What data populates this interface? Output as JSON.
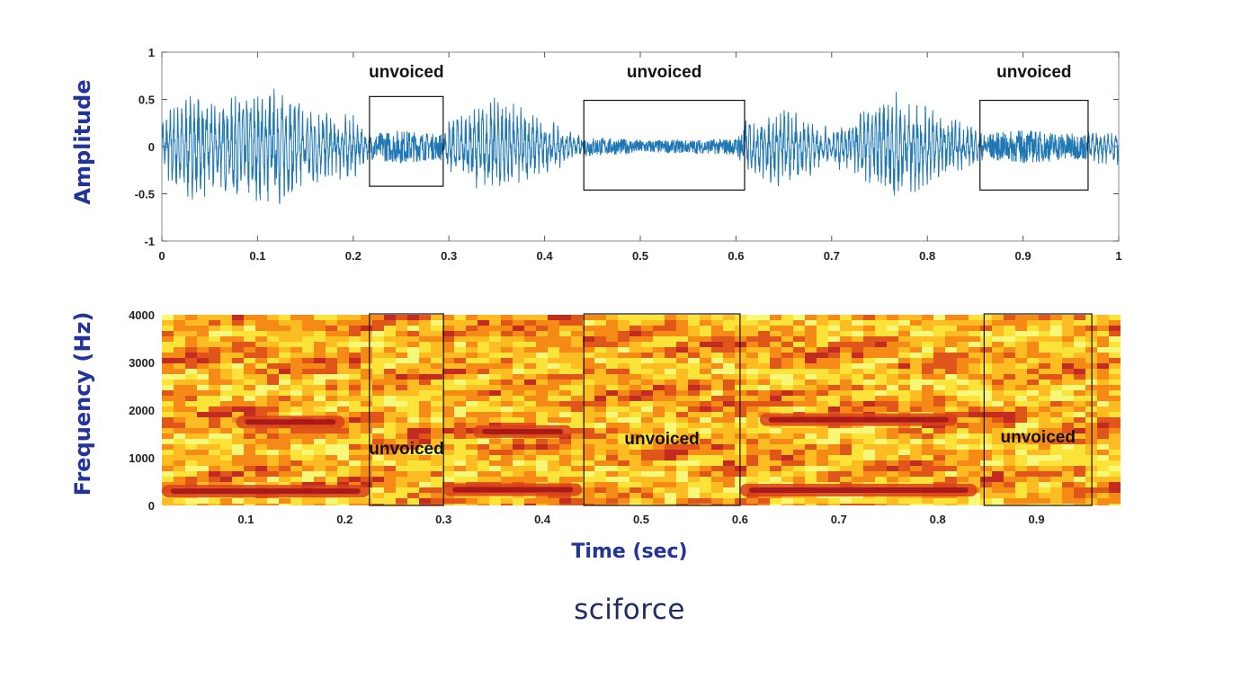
{
  "brand": {
    "logo_text": "sciforce"
  },
  "colors": {
    "waveform": "#1f77b4",
    "axis_label": "#22339a",
    "logo": "#1f2d63"
  },
  "chart_data": [
    {
      "type": "line",
      "name": "waveform",
      "xlabel": "",
      "ylabel": "Amplitude",
      "xlim": [
        0,
        1
      ],
      "ylim": [
        -1,
        1
      ],
      "x_ticks": [
        "0",
        "0.1",
        "0.2",
        "0.3",
        "0.4",
        "0.5",
        "0.6",
        "0.7",
        "0.8",
        "0.9",
        "1"
      ],
      "y_ticks": [
        "1",
        "0.5",
        "0",
        "-0.5",
        "-1"
      ],
      "envelope": {
        "t": [
          0.0,
          0.03,
          0.06,
          0.1,
          0.12,
          0.15,
          0.2,
          0.215,
          0.25,
          0.29,
          0.3,
          0.35,
          0.4,
          0.44,
          0.5,
          0.55,
          0.6,
          0.61,
          0.65,
          0.7,
          0.75,
          0.77,
          0.8,
          0.85,
          0.86,
          0.9,
          0.96,
          1.0
        ],
        "amp": [
          0.35,
          0.6,
          0.5,
          0.6,
          0.7,
          0.45,
          0.35,
          0.15,
          0.2,
          0.15,
          0.3,
          0.55,
          0.3,
          0.12,
          0.08,
          0.08,
          0.1,
          0.3,
          0.45,
          0.2,
          0.5,
          0.6,
          0.45,
          0.2,
          0.15,
          0.2,
          0.15,
          0.22
        ]
      },
      "annotations": [
        {
          "label": "unvoiced",
          "x_range": [
            0.217,
            0.294
          ],
          "y_range": [
            -0.42,
            0.53
          ]
        },
        {
          "label": "unvoiced",
          "x_range": [
            0.441,
            0.609
          ],
          "y_range": [
            -0.46,
            0.49
          ]
        },
        {
          "label": "unvoiced",
          "x_range": [
            0.855,
            0.968
          ],
          "y_range": [
            -0.46,
            0.49
          ]
        }
      ]
    },
    {
      "type": "heatmap",
      "name": "spectrogram",
      "xlabel": "Time (sec)",
      "ylabel": "Frequency (Hz)",
      "xlim": [
        0.015,
        0.985
      ],
      "ylim": [
        0,
        4000
      ],
      "x_ticks": [
        "0.1",
        "0.2",
        "0.3",
        "0.4",
        "0.5",
        "0.6",
        "0.7",
        "0.8",
        "0.9"
      ],
      "y_ticks": [
        "4000",
        "3000",
        "2000",
        "1000",
        "0"
      ],
      "colormap": [
        "#f7f77a",
        "#fbe33a",
        "#fdbd22",
        "#f68a16",
        "#e0561a",
        "#c22c20"
      ],
      "formants": [
        {
          "x_range": [
            0.015,
            0.225
          ],
          "freq": 300
        },
        {
          "x_range": [
            0.3,
            0.44
          ],
          "freq": 330
        },
        {
          "x_range": [
            0.6,
            0.84
          ],
          "freq": 320
        },
        {
          "x_range": [
            0.09,
            0.2
          ],
          "freq": 1750
        },
        {
          "x_range": [
            0.33,
            0.43
          ],
          "freq": 1550
        },
        {
          "x_range": [
            0.62,
            0.82
          ],
          "freq": 1800
        }
      ],
      "annotations": [
        {
          "label": "unvoiced",
          "x_range": [
            0.225,
            0.3
          ],
          "y_range": [
            0,
            4000
          ]
        },
        {
          "label": "unvoiced",
          "x_range": [
            0.442,
            0.6
          ],
          "y_range": [
            0,
            4000
          ]
        },
        {
          "label": "unvoiced",
          "x_range": [
            0.847,
            0.956
          ],
          "y_range": [
            0,
            4000
          ]
        }
      ]
    }
  ]
}
